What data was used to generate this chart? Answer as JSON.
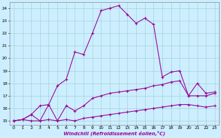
{
  "xlabel": "Windchill (Refroidissement éolien,°C)",
  "bg_color": "#cceeff",
  "line_color": "#990099",
  "xlim": [
    -0.5,
    23.5
  ],
  "ylim": [
    14.7,
    24.5
  ],
  "yticks": [
    15,
    16,
    17,
    18,
    19,
    20,
    21,
    22,
    23,
    24
  ],
  "xticks": [
    0,
    1,
    2,
    3,
    4,
    5,
    6,
    7,
    8,
    9,
    10,
    11,
    12,
    13,
    14,
    15,
    16,
    17,
    18,
    19,
    20,
    21,
    22,
    23
  ],
  "line1_x": [
    0,
    1,
    2,
    3,
    4,
    5,
    6,
    7,
    8,
    9,
    10,
    11,
    12,
    13,
    14,
    15,
    16,
    17,
    18,
    19,
    20,
    21,
    22,
    23
  ],
  "line1_y": [
    15.0,
    15.1,
    15.0,
    15.0,
    15.1,
    15.0,
    15.1,
    15.0,
    15.2,
    15.3,
    15.4,
    15.5,
    15.6,
    15.7,
    15.8,
    15.9,
    16.0,
    16.1,
    16.2,
    16.3,
    16.3,
    16.2,
    16.1,
    16.2
  ],
  "line2_x": [
    0,
    1,
    2,
    3,
    4,
    5,
    6,
    7,
    8,
    9,
    10,
    11,
    12,
    13,
    14,
    15,
    16,
    17,
    18,
    19,
    20,
    21,
    22,
    23
  ],
  "line2_y": [
    15.0,
    15.1,
    15.5,
    16.2,
    16.3,
    17.8,
    18.3,
    20.5,
    20.3,
    22.0,
    23.8,
    24.0,
    24.2,
    23.5,
    22.8,
    23.2,
    22.7,
    18.5,
    18.9,
    19.0,
    17.0,
    18.0,
    17.2,
    17.3
  ],
  "line3_x": [
    0,
    1,
    2,
    3,
    4,
    5,
    6,
    7,
    8,
    9,
    10,
    11,
    12,
    13,
    14,
    15,
    16,
    17,
    18,
    19,
    20,
    21,
    22,
    23
  ],
  "line3_y": [
    15.0,
    15.1,
    15.5,
    15.0,
    16.3,
    15.0,
    16.2,
    15.8,
    16.2,
    16.8,
    17.0,
    17.2,
    17.3,
    17.4,
    17.5,
    17.6,
    17.8,
    17.9,
    18.1,
    18.2,
    17.0,
    17.0,
    17.0,
    17.2
  ]
}
